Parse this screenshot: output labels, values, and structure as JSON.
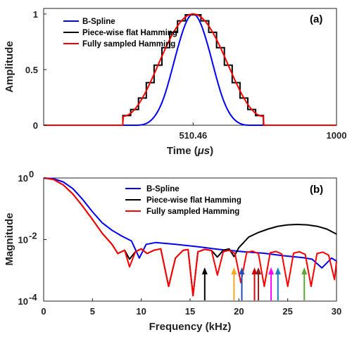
{
  "chart_data": [
    {
      "type": "line",
      "panel_label": "(a)",
      "xlabel": "Time (μs)",
      "xlabel_main": "Time (",
      "xlabel_unit": "μs",
      "xlabel_close": ")",
      "ylabel": "Amplitude",
      "xlim": [
        0,
        1000
      ],
      "ylim": [
        0,
        1.05
      ],
      "xticks": [
        510.46,
        1000
      ],
      "xtick_labels": [
        "510.46",
        "1000"
      ],
      "yticks": [
        0,
        0.5,
        1
      ],
      "ytick_labels": [
        "0",
        "0.5",
        "1"
      ],
      "legend_position": "top-left",
      "series": [
        {
          "name": "B-Spline",
          "color": "#0000ff",
          "shape": "bspline",
          "center": 510.46,
          "support": 400,
          "baseline_x": [
            0,
            1000
          ]
        },
        {
          "name": "Piece-wise flat Hamming",
          "color": "#000000",
          "shape": "stairs",
          "center": 510.46,
          "halfwidth": 240,
          "steps": 18
        },
        {
          "name": "Fully sampled Hamming",
          "color": "#ff0000",
          "shape": "hamming",
          "center": 510.46,
          "halfwidth": 240,
          "edge": 0.08
        }
      ]
    },
    {
      "type": "line",
      "panel_label": "(b)",
      "xlabel": "Frequency (kHz)",
      "ylabel": "Magnitude",
      "xlim": [
        0,
        30
      ],
      "ylim_log10": [
        -4,
        0
      ],
      "yscale": "log",
      "xticks": [
        0,
        5,
        10,
        15,
        20,
        25,
        30
      ],
      "xtick_labels": [
        "0",
        "5",
        "10",
        "15",
        "20",
        "25",
        "30"
      ],
      "yticks_log10": [
        -4,
        -2,
        0
      ],
      "ytick_base": "10",
      "ytick_exps": [
        "-4",
        "-2",
        "0"
      ],
      "legend_position": "top-center",
      "series": [
        {
          "name": "B-Spline",
          "color": "#0000ff",
          "x": [
            0,
            1,
            2,
            3,
            4,
            5,
            6,
            7,
            8,
            9,
            9.8,
            10.5,
            11.5,
            12.5,
            13.5,
            14.5,
            15.5,
            16.5,
            17.5,
            18.5,
            19.5,
            20.5,
            21.5,
            22.5,
            23.5,
            24.5,
            25.5,
            26.5,
            27.5,
            28.5,
            29.5,
            30
          ],
          "y": [
            1,
            0.95,
            0.75,
            0.45,
            0.2,
            0.08,
            0.035,
            0.02,
            0.013,
            0.009,
            0.0025,
            0.007,
            0.008,
            0.0075,
            0.007,
            0.0065,
            0.006,
            0.0055,
            0.005,
            0.0046,
            0.0043,
            0.004,
            0.0038,
            0.0036,
            0.0033,
            0.003,
            0.0028,
            0.0026,
            0.0023,
            0.0012,
            0.0025,
            0.002
          ]
        },
        {
          "name": "Piece-wise flat Hamming",
          "color": "#000000",
          "x": [
            0,
            1,
            2,
            3,
            4,
            5,
            6,
            7,
            7.6,
            8.3,
            8.8,
            9.4,
            10,
            10.6,
            11.3,
            12,
            12.8,
            13.5,
            14.3,
            14.8,
            15.3,
            15.8,
            16.5,
            17.2,
            17.8,
            18.4,
            19,
            19.5,
            20,
            21,
            22,
            23,
            24,
            25,
            26,
            27,
            28,
            29,
            30
          ],
          "y": [
            1,
            0.9,
            0.6,
            0.3,
            0.12,
            0.045,
            0.016,
            0.007,
            0.0035,
            0.0045,
            0.0023,
            0.004,
            0.005,
            0.0035,
            0.0045,
            0.005,
            0.0003,
            0.0025,
            0.0045,
            0.0047,
            0.00015,
            0.004,
            0.0048,
            0.0044,
            0.0027,
            0.0045,
            0.005,
            0.0028,
            0.0055,
            0.012,
            0.017,
            0.022,
            0.027,
            0.03,
            0.031,
            0.03,
            0.027,
            0.022,
            0.015
          ]
        },
        {
          "name": "Fully sampled Hamming",
          "color": "#ff0000",
          "x": [
            0,
            1,
            2,
            3,
            4,
            5,
            6,
            7,
            7.6,
            8.3,
            8.8,
            9.4,
            10,
            10.6,
            11.3,
            12,
            12.8,
            13.5,
            14.3,
            14.8,
            15.3,
            15.8,
            16.5,
            17.2,
            17.8,
            18.4,
            19,
            19.6,
            20.2,
            20.8,
            21.4,
            22,
            22.6,
            23.2,
            23.8,
            24.4,
            25,
            25.6,
            26.2,
            26.8,
            27.4,
            28,
            28.6,
            29.2,
            29.8,
            30
          ],
          "y": [
            1,
            0.9,
            0.6,
            0.3,
            0.12,
            0.045,
            0.016,
            0.007,
            0.0035,
            0.0045,
            0.0013,
            0.004,
            0.005,
            0.0035,
            0.0045,
            0.005,
            0.0003,
            0.0025,
            0.0045,
            0.0047,
            0.00015,
            0.004,
            0.0048,
            0.0044,
            0.0007,
            0.004,
            0.0045,
            0.0035,
            0.0004,
            0.0038,
            0.0042,
            0.0035,
            0.0003,
            0.0037,
            0.0041,
            0.0034,
            0.0003,
            0.0036,
            0.004,
            0.0033,
            0.0003,
            0.0035,
            0.0039,
            0.0031,
            0.0005,
            0.002
          ]
        }
      ],
      "arrows": [
        {
          "x": 16.5,
          "color": "#000000"
        },
        {
          "x": 19.5,
          "color": "#f5a623"
        },
        {
          "x": 20.3,
          "color": "#1f4fbf"
        },
        {
          "x": 21.6,
          "color": "#d40000"
        },
        {
          "x": 22.0,
          "color": "#8b1a1a"
        },
        {
          "x": 23.3,
          "color": "#ff00ff"
        },
        {
          "x": 24.0,
          "color": "#1b7fbf"
        },
        {
          "x": 26.7,
          "color": "#5aa832"
        }
      ]
    }
  ]
}
